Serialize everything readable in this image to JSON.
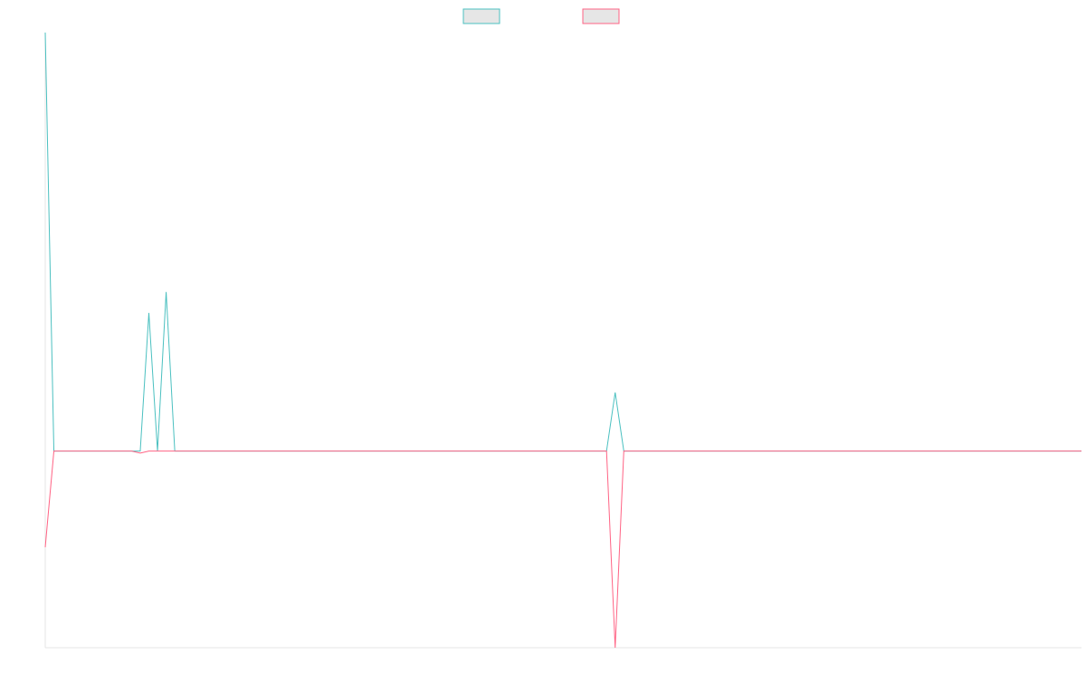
{
  "chart_data": {
    "type": "line",
    "x": [
      0,
      1,
      2,
      3,
      4,
      5,
      6,
      7,
      8,
      9,
      10,
      11,
      12,
      13,
      14,
      15,
      16,
      17,
      18,
      19,
      20,
      21,
      22,
      23,
      24,
      25,
      26,
      27,
      28,
      29,
      30,
      31,
      32,
      33,
      34,
      35,
      36,
      37,
      38,
      39,
      40,
      41,
      42,
      43,
      44,
      45,
      46,
      47,
      48,
      49,
      50,
      51,
      52,
      53,
      54,
      55,
      56,
      57,
      58,
      59,
      60,
      61,
      62,
      63,
      64,
      65,
      66,
      67,
      68,
      69,
      70,
      71,
      72,
      73,
      74,
      75,
      76,
      77,
      78,
      79,
      80,
      81,
      82,
      83,
      84,
      85,
      86,
      87,
      88,
      89,
      90,
      91,
      92,
      93,
      94,
      95,
      96,
      97,
      98,
      99,
      100,
      101,
      102,
      103,
      104,
      105,
      106,
      107,
      108,
      109,
      110,
      111,
      112,
      113,
      114,
      115,
      116,
      117,
      118,
      119,
      120
    ],
    "series": [
      {
        "name": "",
        "color": "#4bc0c0",
        "values": [
          100,
          0,
          0,
          0,
          0,
          0,
          0,
          0,
          0,
          0,
          0,
          0,
          33,
          0,
          38,
          0,
          0,
          0,
          0,
          0,
          0,
          0,
          0,
          0,
          0,
          0,
          0,
          0,
          0,
          0,
          0,
          0,
          0,
          0,
          0,
          0,
          0,
          0,
          0,
          0,
          0,
          0,
          0,
          0,
          0,
          0,
          0,
          0,
          0,
          0,
          0,
          0,
          0,
          0,
          0,
          0,
          0,
          0,
          0,
          0,
          0,
          0,
          0,
          0,
          0,
          0,
          14,
          0,
          0,
          0,
          0,
          0,
          0,
          0,
          0,
          0,
          0,
          0,
          0,
          0,
          0,
          0,
          0,
          0,
          0,
          0,
          0,
          0,
          0,
          0,
          0,
          0,
          0,
          0,
          0,
          0,
          0,
          0,
          0,
          0,
          0,
          0,
          0,
          0,
          0,
          0,
          0,
          0,
          0,
          0,
          0,
          0,
          0,
          0,
          0,
          0,
          0,
          0,
          0,
          0,
          0
        ]
      },
      {
        "name": "",
        "color": "#ff6384",
        "values": [
          -23,
          0,
          0,
          0,
          0,
          0,
          0,
          0,
          0,
          0,
          0,
          -0.5,
          0,
          0,
          0,
          0,
          0,
          0,
          0,
          0,
          0,
          0,
          0,
          0,
          0,
          0,
          0,
          0,
          0,
          0,
          0,
          0,
          0,
          0,
          0,
          0,
          0,
          0,
          0,
          0,
          0,
          0,
          0,
          0,
          0,
          0,
          0,
          0,
          0,
          0,
          0,
          0,
          0,
          0,
          0,
          0,
          0,
          0,
          0,
          0,
          0,
          0,
          0,
          0,
          0,
          0,
          -47,
          0,
          0,
          0,
          0,
          0,
          0,
          0,
          0,
          0,
          0,
          0,
          0,
          0,
          0,
          0,
          0,
          0,
          0,
          0,
          0,
          0,
          0,
          0,
          0,
          0,
          0,
          0,
          0,
          0,
          0,
          0,
          0,
          0,
          0,
          0,
          0,
          0,
          0,
          0,
          0,
          0,
          0,
          0,
          0,
          0,
          0,
          0,
          0,
          0,
          0,
          0,
          0,
          0,
          0
        ]
      }
    ],
    "title": "",
    "xlabel": "",
    "ylabel": "",
    "ylim": [
      -47,
      100
    ],
    "grid": false,
    "legend": "top-center",
    "legend_fill": "#e6e6e6"
  }
}
